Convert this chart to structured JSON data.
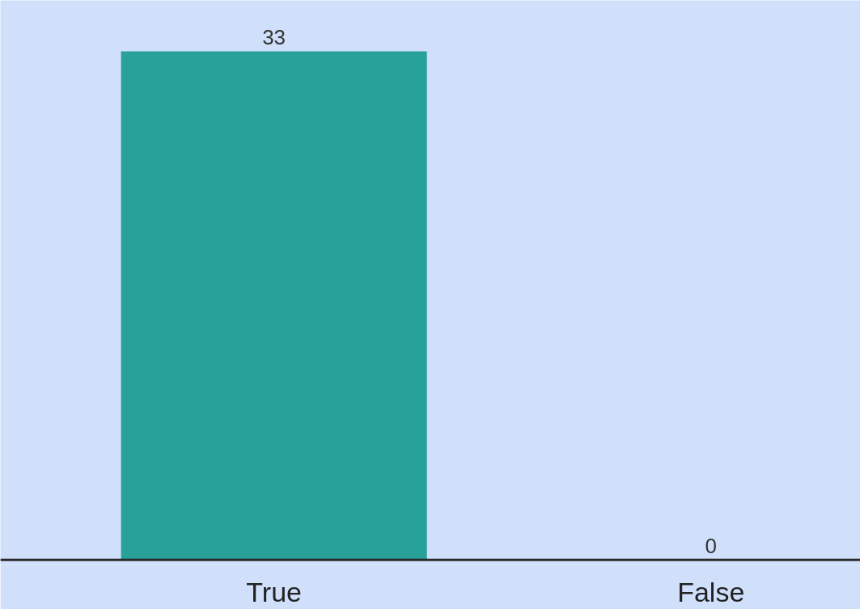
{
  "chart_data": {
    "type": "bar",
    "categories": [
      "True",
      "False"
    ],
    "values": [
      33,
      0
    ],
    "colors": [
      "#28a199",
      "#28a199"
    ],
    "data_labels": true,
    "grid": false
  }
}
